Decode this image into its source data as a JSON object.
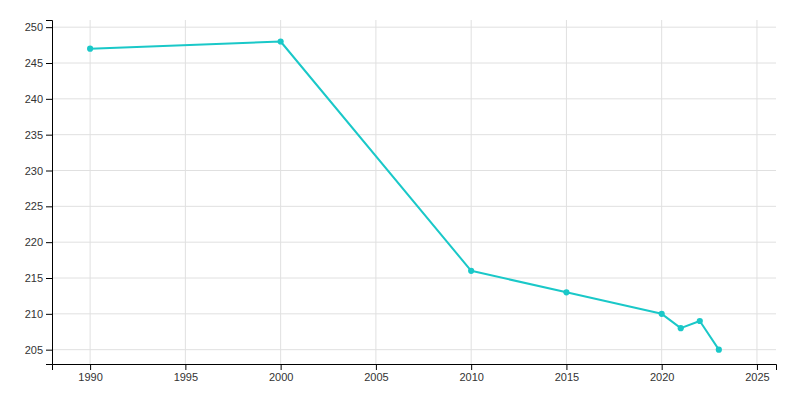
{
  "chart_data": {
    "type": "line",
    "x": [
      1990,
      2000,
      2010,
      2015,
      2020,
      2021,
      2022,
      2023
    ],
    "values": [
      247,
      248,
      216,
      213,
      210,
      208,
      209,
      205
    ],
    "color": "#1ac8c8",
    "marker": "circle",
    "xlim": [
      1988,
      2026
    ],
    "ylim": [
      203,
      251
    ],
    "xticks": [
      1990,
      1995,
      2000,
      2005,
      2010,
      2015,
      2020,
      2025
    ],
    "yticks": [
      205,
      210,
      215,
      220,
      225,
      230,
      235,
      240,
      245,
      250
    ],
    "grid": true
  }
}
